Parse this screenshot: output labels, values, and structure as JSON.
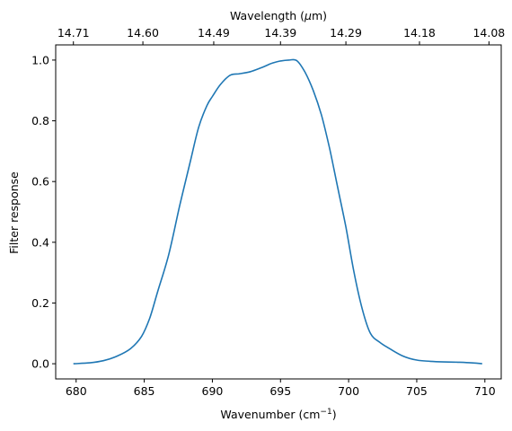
{
  "chart_data": {
    "type": "line",
    "xlabel": "Wavenumber (cm",
    "xlabel_sup": "−1",
    "xlabel_end": ")",
    "ylabel": "Filter response",
    "top_xlabel": "Wavelength (",
    "top_xlabel_mu": "μ",
    "top_xlabel_end": "m)",
    "xlim": [
      678.5,
      711.2
    ],
    "ylim": [
      -0.05,
      1.05
    ],
    "xticks": [
      680,
      685,
      690,
      695,
      700,
      705,
      710
    ],
    "xtick_labels": [
      "680",
      "685",
      "690",
      "695",
      "700",
      "705",
      "710"
    ],
    "yticks": [
      0.0,
      0.2,
      0.4,
      0.6,
      0.8,
      1.0
    ],
    "ytick_labels": [
      "0.0",
      "0.2",
      "0.4",
      "0.6",
      "0.8",
      "1.0"
    ],
    "top_ticks": [
      {
        "label": "14.71",
        "wavenumber": 679.8
      },
      {
        "label": "14.60",
        "wavenumber": 684.9
      },
      {
        "label": "14.49",
        "wavenumber": 690.1
      },
      {
        "label": "14.39",
        "wavenumber": 695.0
      },
      {
        "label": "14.29",
        "wavenumber": 699.8
      },
      {
        "label": "14.18",
        "wavenumber": 705.2
      },
      {
        "label": "14.08",
        "wavenumber": 710.3
      }
    ],
    "grid": false,
    "series": [
      {
        "color": "#1f77b4",
        "x": [
          679.8,
          681.0,
          682.0,
          683.0,
          684.0,
          684.8,
          685.4,
          686.0,
          686.8,
          687.6,
          688.4,
          689.0,
          689.6,
          690.0,
          690.6,
          691.3,
          692.0,
          692.8,
          693.6,
          694.4,
          695.0,
          695.6,
          696.2,
          696.8,
          697.4,
          698.0,
          698.6,
          699.2,
          699.8,
          700.4,
          701.0,
          701.6,
          702.3,
          703.0,
          704.0,
          705.0,
          706.0,
          707.0,
          708.0,
          709.0,
          709.8
        ],
        "y": [
          0.0,
          0.003,
          0.01,
          0.025,
          0.05,
          0.09,
          0.15,
          0.24,
          0.36,
          0.52,
          0.67,
          0.78,
          0.85,
          0.88,
          0.92,
          0.95,
          0.955,
          0.962,
          0.975,
          0.99,
          0.997,
          1.0,
          0.998,
          0.96,
          0.9,
          0.82,
          0.71,
          0.58,
          0.45,
          0.3,
          0.18,
          0.1,
          0.07,
          0.05,
          0.025,
          0.012,
          0.008,
          0.006,
          0.005,
          0.003,
          0.0
        ]
      }
    ]
  }
}
